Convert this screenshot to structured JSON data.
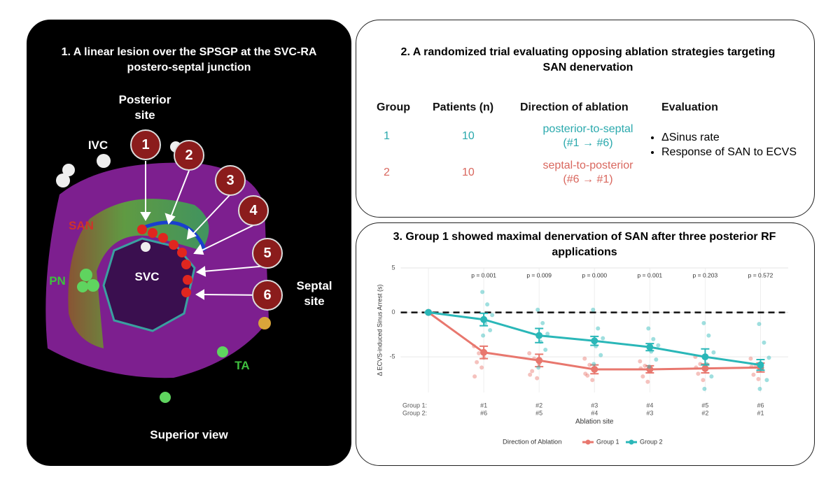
{
  "panel1": {
    "title": "1. A linear lesion over the SPSGP at the SVC-RA postero-septal junction",
    "labels": {
      "posterior_site": "Posterior site",
      "ivc": "IVC",
      "san": "SAN",
      "pn": "PN",
      "svc": "SVC",
      "septal_site": "Septal site",
      "ta": "TA",
      "view": "Superior view"
    },
    "sites": [
      "1",
      "2",
      "3",
      "4",
      "5",
      "6"
    ]
  },
  "panel2": {
    "title": "2. A randomized trial evaluating opposing ablation strategies targeting SAN denervation",
    "table": {
      "header": [
        "Group",
        "Patients (n)",
        "Direction of ablation",
        "Evaluation"
      ],
      "rows": [
        {
          "group": "1",
          "patients": "10",
          "direction": [
            "posterior-to-septal",
            "(#1 → #6)"
          ],
          "color": "#2aa9ad"
        },
        {
          "group": "2",
          "patients": "10",
          "direction": [
            "septal-to-posterior",
            "(#6 → #1)"
          ],
          "color": "#d9675e"
        }
      ],
      "evaluation": [
        "ΔSinus rate",
        "Response of SAN to ECVS"
      ]
    }
  },
  "chart_data": {
    "type": "line",
    "title": "3. Group 1 showed maximal denervation of SAN after three posterior RF applications",
    "x_label": "Ablation site",
    "y_label": "Δ ECVS-induced Sinus Arrest (s)",
    "category_row_labels": [
      "Group 1:",
      "Group 2:"
    ],
    "categories": [
      null,
      "#1",
      "#2",
      "#3",
      "#4",
      "#5",
      "#6"
    ],
    "categories_group2": [
      null,
      "#6",
      "#5",
      "#4",
      "#3",
      "#2",
      "#1"
    ],
    "annotations": [
      null,
      "p = 0.001",
      "p = 0.009",
      "p = 0.000",
      "p = 0.001",
      "p = 0.203",
      "p = 0.572"
    ],
    "ylim": [
      -9,
      5
    ],
    "yticks": [
      -5,
      0,
      5
    ],
    "hline": 0,
    "grid": true,
    "legend_title": "Direction of Ablation",
    "legend": "bottom",
    "series": [
      {
        "name": "Group 1",
        "color": "#e8776e",
        "values": [
          0,
          -4.5,
          -5.4,
          -6.4,
          -6.4,
          -6.3,
          -6.2
        ],
        "errors": [
          0,
          0.7,
          0.7,
          0.5,
          0.4,
          0.5,
          0.5
        ],
        "points": [
          [],
          [
            -3.8,
            -4.6,
            -5.1,
            -5.6,
            -6.2,
            -7.2
          ],
          [
            -4.6,
            -5.2,
            -5.8,
            -6.6,
            -7.4,
            -7.0
          ],
          [
            -5.2,
            -5.9,
            -6.5,
            -7.1,
            -7.6,
            -6.9
          ],
          [
            -5.5,
            -6.0,
            -6.6,
            -7.2,
            -7.8,
            -6.3
          ],
          [
            -5.0,
            -5.8,
            -6.4,
            -6.9,
            -7.6,
            -6.2
          ],
          [
            -5.2,
            -5.9,
            -6.4,
            -7.0,
            -7.5,
            -6.1
          ]
        ]
      },
      {
        "name": "Group 2",
        "color": "#2ab7b8",
        "values": [
          0,
          -0.8,
          -2.6,
          -3.2,
          -3.9,
          -5.0,
          -5.9
        ],
        "errors": [
          0,
          0.7,
          0.8,
          0.5,
          0.4,
          0.9,
          0.6
        ],
        "points": [
          [],
          [
            2.3,
            0.9,
            -0.3,
            -1.2,
            -2.0,
            -2.6
          ],
          [
            0.3,
            -1.2,
            -2.4,
            -3.3,
            -4.2,
            -6.2
          ],
          [
            0.3,
            -1.8,
            -2.9,
            -3.8,
            -4.8,
            -5.8
          ],
          [
            -1.8,
            -3.0,
            -3.7,
            -4.4,
            -5.3,
            -6.1
          ],
          [
            -1.2,
            -2.6,
            -4.5,
            -5.8,
            -7.2,
            -8.6
          ],
          [
            -1.3,
            -3.4,
            -5.1,
            -6.3,
            -7.6,
            -8.6
          ]
        ]
      }
    ]
  }
}
